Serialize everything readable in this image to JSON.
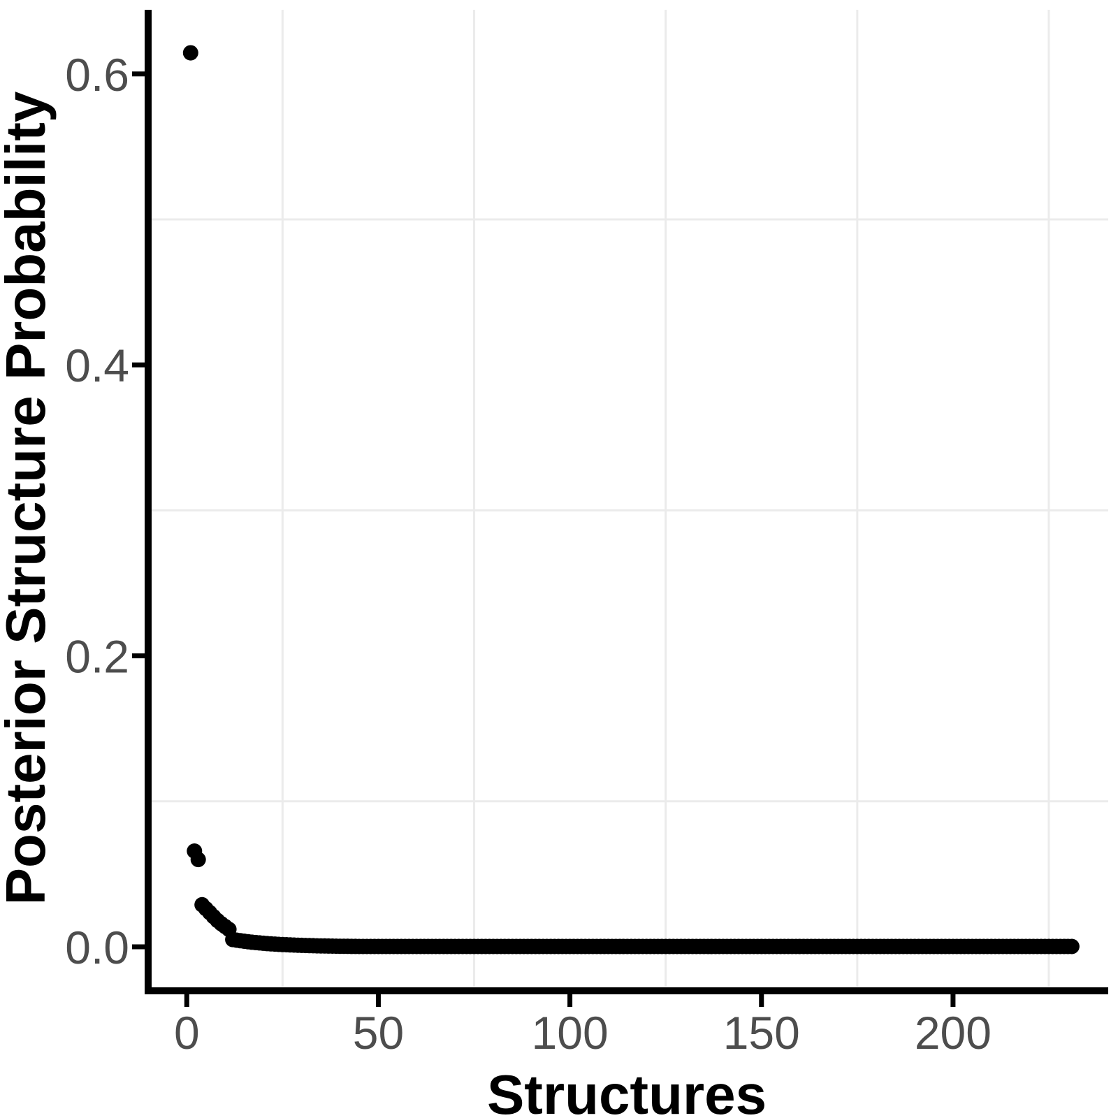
{
  "figure": {
    "background_color": "#ffffff",
    "point_color": "#000000",
    "axis_line_color": "#000000",
    "tick_color": "#000000",
    "tick_label_color": "#4d4d4d",
    "axis_title_color": "#000000",
    "grid_minor_color": "#ebebeb",
    "x_axis": {
      "title": "Structures",
      "tick_labels": [
        "0",
        "50",
        "100",
        "150",
        "200"
      ],
      "tick_values": [
        0,
        50,
        100,
        150,
        200
      ],
      "minor_grid_values": [
        25,
        75,
        125,
        175,
        225
      ]
    },
    "y_axis": {
      "title": "Posterior Structure Probability",
      "tick_labels": [
        "0.0",
        "0.2",
        "0.4",
        "0.6"
      ],
      "tick_values": [
        0.0,
        0.2,
        0.4,
        0.6
      ],
      "minor_grid_values": [
        0.1,
        0.3,
        0.5
      ]
    }
  },
  "chart_data": {
    "type": "scatter",
    "title": "",
    "xlabel": "Structures",
    "ylabel": "Posterior Structure Probability",
    "x_description": "structure rank, x = 1..231 (sorted by decreasing posterior probability)",
    "xlim": [
      -10,
      243
    ],
    "ylim": [
      -0.031,
      0.645
    ],
    "grid": "minor-only",
    "legend": "none",
    "values": [
      0.6145,
      0.0658,
      0.06,
      0.0289,
      0.0262,
      0.0235,
      0.0207,
      0.0181,
      0.0159,
      0.014,
      0.012,
      0.005,
      0.00457,
      0.00418,
      0.00382,
      0.00349,
      0.00319,
      0.00292,
      0.00267,
      0.00244,
      0.00223,
      0.00204,
      0.00186,
      0.0017,
      0.00156,
      0.00142,
      0.0013,
      0.00119,
      0.00109,
      0.00099,
      0.00091,
      0.00083,
      0.00076,
      0.00069,
      0.00063,
      0.00058,
      0.00053,
      0.00048,
      0.00044,
      0.0004,
      0.00037,
      0.00034,
      0.00031,
      0.00028,
      0.00026,
      0.00025,
      0.00025,
      0.00025,
      0.00025,
      0.00025,
      0.00025,
      0.00025,
      0.00025,
      0.00025,
      0.00025,
      0.00025,
      0.00025,
      0.00025,
      0.00025,
      0.00025,
      0.00025,
      0.00025,
      0.00025,
      0.00025,
      0.00025,
      0.00025,
      0.00025,
      0.00025,
      0.00025,
      0.00025,
      0.00025,
      0.00025,
      0.00025,
      0.00025,
      0.00025,
      0.00025,
      0.00025,
      0.00025,
      0.00025,
      0.00025,
      0.00025,
      0.00025,
      0.00025,
      0.00025,
      0.00025,
      0.00025,
      0.00025,
      0.00025,
      0.00025,
      0.00025,
      0.00025,
      0.00025,
      0.00025,
      0.00025,
      0.00025,
      0.00025,
      0.00025,
      0.00025,
      0.00025,
      0.00025,
      0.00025,
      0.00025,
      0.00025,
      0.00025,
      0.00025,
      0.00025,
      0.00025,
      0.00025,
      0.00025,
      0.00025,
      0.00025,
      0.00025,
      0.00025,
      0.00025,
      0.00025,
      0.00025,
      0.00025,
      0.00025,
      0.00025,
      0.00025,
      0.00025,
      0.00025,
      0.00025,
      0.00025,
      0.00025,
      0.00025,
      0.00025,
      0.00025,
      0.00025,
      0.00025,
      0.00025,
      0.00025,
      0.00025,
      0.00025,
      0.00025,
      0.00025,
      0.00025,
      0.00025,
      0.00025,
      0.00025,
      0.00025,
      0.00025,
      0.00025,
      0.00025,
      0.00025,
      0.00025,
      0.00025,
      0.00025,
      0.00025,
      0.00025,
      0.00025,
      0.00025,
      0.00025,
      0.00025,
      0.00025,
      0.00025,
      0.00025,
      0.00025,
      0.00025,
      0.00025,
      0.00025,
      0.00025,
      0.00025,
      0.00025,
      0.00025,
      0.00025,
      0.00025,
      0.00025,
      0.00025,
      0.00025,
      0.00025,
      0.00025,
      0.00025,
      0.00025,
      0.00025,
      0.00025,
      0.00025,
      0.00025,
      0.00025,
      0.00025,
      0.00025,
      0.00025,
      0.00025,
      0.00025,
      0.00025,
      0.00025,
      0.00025,
      0.00025,
      0.00025,
      0.00025,
      0.00025,
      0.00025,
      0.00025,
      0.00025,
      0.00025,
      0.00025,
      0.00025,
      0.00025,
      0.00025,
      0.00025,
      0.00025,
      0.00025,
      0.00025,
      0.00025,
      0.00025,
      0.00025,
      0.00025,
      0.00025,
      0.00025,
      0.00025,
      0.00025,
      0.00025,
      0.00025,
      0.00025,
      0.00025,
      0.00025,
      0.00025,
      0.00025,
      0.00025,
      0.00025,
      0.00025,
      0.00025,
      0.00025,
      0.00025,
      0.00025,
      0.00025,
      0.00025,
      0.00025,
      0.00025,
      0.00025,
      0.00025
    ]
  }
}
